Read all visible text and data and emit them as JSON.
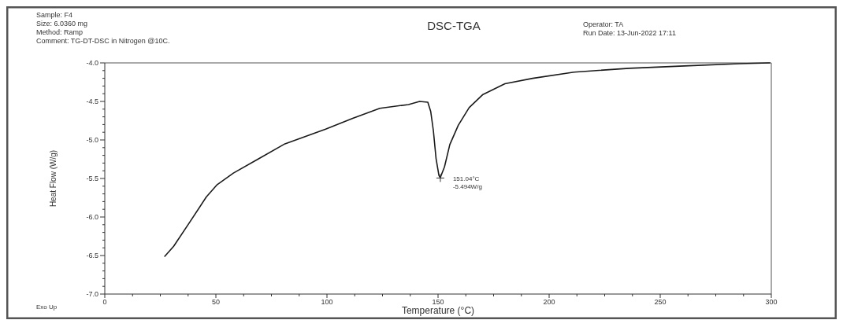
{
  "chart_data": {
    "type": "line",
    "title": "DSC-TGA",
    "xlabel": "Temperature (°C)",
    "ylabel": "Heat Flow (W/g)",
    "xlim": [
      0,
      300
    ],
    "xticks": [
      0,
      50,
      100,
      150,
      200,
      250,
      300
    ],
    "ylim": [
      -7,
      -4
    ],
    "yticks": [
      {
        "value": -7,
        "label": "-7.0"
      },
      {
        "value": -6.5,
        "label": "-6.5"
      },
      {
        "value": -6,
        "label": "-6.0"
      },
      {
        "value": -5.5,
        "label": "-5.5"
      },
      {
        "value": -5,
        "label": "-5.0"
      },
      {
        "value": -4.5,
        "label": "-4.5"
      },
      {
        "value": -4,
        "label": "-4.0"
      }
    ],
    "grid": false,
    "marker": "none",
    "line_style": "solid",
    "series": [
      {
        "color": "#1a1a1a",
        "x": [
          27,
          31,
          38.4,
          45.7,
          50.6,
          57.9,
          68.9,
          81.1,
          99.4,
          111.6,
          123.8,
          136.7,
          141.7,
          145.4,
          146.7,
          147.9,
          149.1,
          150.4,
          151,
          152.9,
          155.3,
          159.1,
          164,
          170.2,
          180.1,
          192.6,
          211.2,
          236,
          260.8,
          285.6,
          299.3
        ],
        "values": [
          -6.51,
          -6.38,
          -6.06,
          -5.74,
          -5.58,
          -5.43,
          -5.25,
          -5.05,
          -4.86,
          -4.72,
          -4.59,
          -4.54,
          -4.5,
          -4.51,
          -4.63,
          -4.88,
          -5.24,
          -5.46,
          -5.49,
          -5.35,
          -5.06,
          -4.81,
          -4.58,
          -4.41,
          -4.27,
          -4.2,
          -4.12,
          -4.07,
          -4.04,
          -4.01,
          -4
        ]
      }
    ],
    "annotations": [
      "Sample: F4\nSize:  6.0360 mg\nMethod: Ramp\nComment: TG-DT-DSC in Nitrogen @10C.",
      "Operator: TA\nRun Date: 13-Jun-2022 17:11",
      "Exo Up",
      {
        "text": "151.04°C\n-5.494W/g",
        "x": 151.04,
        "y": -5.494
      }
    ]
  }
}
